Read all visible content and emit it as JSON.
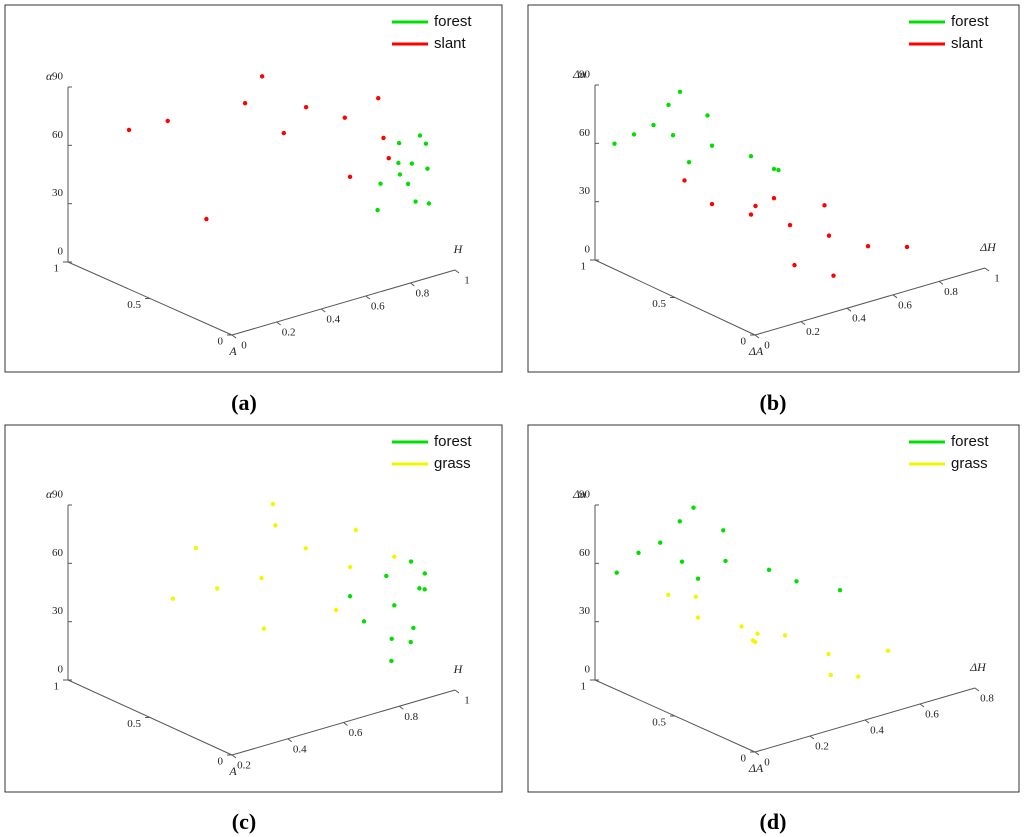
{
  "chart_data": [
    {
      "type": "scatter3d",
      "label": "(a)",
      "x_label": "H",
      "y_label": "A",
      "z_label": "α",
      "xlim": [
        0,
        1
      ],
      "ylim": [
        0,
        1
      ],
      "zlim": [
        0,
        90
      ],
      "xticks": [
        0,
        0.2,
        0.4,
        0.6,
        0.8,
        1
      ],
      "yticks": [
        0,
        0.5,
        1
      ],
      "zticks": [
        0,
        30,
        60,
        90
      ],
      "series": [
        {
          "name": "forest",
          "color": "#00e000",
          "x": [
            0.95,
            0.9,
            0.98,
            0.85,
            0.92,
            0.88,
            0.97,
            0.8,
            0.93,
            0.86,
            0.99,
            0.9
          ],
          "y": [
            0.1,
            0.2,
            0.15,
            0.25,
            0.05,
            0.1,
            0.3,
            0.2,
            0.25,
            0.05,
            0.2,
            0.15
          ],
          "z": [
            50,
            45,
            60,
            40,
            35,
            55,
            55,
            30,
            48,
            38,
            62,
            42
          ]
        },
        {
          "name": "slant",
          "color": "#ff0000",
          "x": [
            0.9,
            0.8,
            0.7,
            0.6,
            0.85,
            0.5,
            0.3,
            0.2,
            0.95,
            0.75,
            0.4,
            0.65
          ],
          "y": [
            0.3,
            0.4,
            0.5,
            0.5,
            0.2,
            0.6,
            0.8,
            0.9,
            0.4,
            0.3,
            0.7,
            0.7
          ],
          "z": [
            60,
            70,
            75,
            65,
            55,
            80,
            70,
            65,
            75,
            45,
            20,
            85
          ]
        }
      ]
    },
    {
      "type": "scatter3d",
      "label": "(b)",
      "x_label": "ΔH",
      "y_label": "ΔA",
      "z_label": "Δα",
      "xlim": [
        0,
        1
      ],
      "ylim": [
        0,
        1
      ],
      "zlim": [
        0,
        90
      ],
      "xticks": [
        0,
        0.2,
        0.4,
        0.6,
        0.8,
        1
      ],
      "yticks": [
        0,
        0.5,
        1
      ],
      "zticks": [
        0,
        30,
        60,
        90
      ],
      "series": [
        {
          "name": "forest",
          "color": "#00e000",
          "x": [
            0.1,
            0.2,
            0.3,
            0.15,
            0.4,
            0.25,
            0.05,
            0.35,
            0.5,
            0.2,
            0.45,
            0.3
          ],
          "y": [
            0.9,
            0.8,
            0.7,
            0.85,
            0.6,
            0.9,
            0.95,
            0.8,
            0.6,
            0.7,
            0.5,
            0.9
          ],
          "z": [
            65,
            65,
            60,
            70,
            55,
            75,
            60,
            70,
            45,
            55,
            50,
            80
          ]
        },
        {
          "name": "slant",
          "color": "#ff0000",
          "x": [
            0.3,
            0.4,
            0.5,
            0.6,
            0.7,
            0.45,
            0.35,
            0.55,
            0.8,
            0.65,
            0.5,
            0.25
          ],
          "y": [
            0.7,
            0.6,
            0.5,
            0.4,
            0.3,
            0.4,
            0.5,
            0.3,
            0.2,
            0.5,
            0.6,
            0.8
          ],
          "z": [
            30,
            25,
            20,
            15,
            10,
            5,
            35,
            0,
            10,
            25,
            30,
            40
          ]
        }
      ]
    },
    {
      "type": "scatter3d",
      "label": "(c)",
      "x_label": "H",
      "y_label": "A",
      "z_label": "α",
      "xlim": [
        0.2,
        1
      ],
      "ylim": [
        0,
        1
      ],
      "zlim": [
        0,
        90
      ],
      "xticks": [
        0.2,
        0.4,
        0.6,
        0.8,
        1
      ],
      "yticks": [
        0,
        0.5,
        1
      ],
      "zticks": [
        0,
        30,
        60,
        90
      ],
      "series": [
        {
          "name": "forest",
          "color": "#00e000",
          "x": [
            0.9,
            0.95,
            0.85,
            0.98,
            0.92,
            0.88,
            0.8,
            0.96,
            0.9,
            0.86,
            0.99,
            0.93
          ],
          "y": [
            0.2,
            0.1,
            0.3,
            0.15,
            0.25,
            0.05,
            0.3,
            0.2,
            0.1,
            0.15,
            0.2,
            0.3
          ],
          "z": [
            40,
            50,
            30,
            55,
            20,
            35,
            45,
            60,
            25,
            15,
            45,
            50
          ]
        },
        {
          "name": "grass",
          "color": "#f5f500",
          "x": [
            0.8,
            0.7,
            0.6,
            0.9,
            0.75,
            0.5,
            0.4,
            0.65,
            0.85,
            0.55,
            0.7,
            0.6
          ],
          "y": [
            0.3,
            0.4,
            0.5,
            0.2,
            0.3,
            0.6,
            0.7,
            0.5,
            0.35,
            0.4,
            0.6,
            0.9
          ],
          "z": [
            60,
            70,
            55,
            65,
            40,
            50,
            45,
            80,
            75,
            35,
            85,
            55
          ]
        }
      ]
    },
    {
      "type": "scatter3d",
      "label": "(d)",
      "x_label": "ΔH",
      "y_label": "ΔA",
      "z_label": "Δα",
      "xlim": [
        0,
        0.8
      ],
      "ylim": [
        0,
        1
      ],
      "zlim": [
        0,
        90
      ],
      "xticks": [
        0,
        0.2,
        0.4,
        0.6,
        0.8
      ],
      "yticks": [
        0,
        0.5,
        1
      ],
      "zticks": [
        0,
        30,
        60,
        90
      ],
      "series": [
        {
          "name": "forest",
          "color": "#00e000",
          "x": [
            0.1,
            0.2,
            0.3,
            0.15,
            0.4,
            0.25,
            0.05,
            0.35,
            0.5,
            0.2,
            0.6,
            0.3
          ],
          "y": [
            0.9,
            0.8,
            0.7,
            0.85,
            0.6,
            0.9,
            0.95,
            0.8,
            0.6,
            0.7,
            0.5,
            0.9
          ],
          "z": [
            65,
            60,
            60,
            70,
            55,
            75,
            55,
            70,
            45,
            55,
            40,
            80
          ]
        },
        {
          "name": "grass",
          "color": "#f5f500",
          "x": [
            0.2,
            0.3,
            0.4,
            0.35,
            0.5,
            0.25,
            0.45,
            0.55,
            0.3,
            0.4,
            0.6,
            0.15
          ],
          "y": [
            0.7,
            0.6,
            0.5,
            0.6,
            0.4,
            0.8,
            0.3,
            0.3,
            0.5,
            0.7,
            0.2,
            0.8
          ],
          "z": [
            35,
            30,
            25,
            20,
            15,
            40,
            10,
            5,
            30,
            15,
            20,
            45
          ]
        }
      ]
    }
  ]
}
